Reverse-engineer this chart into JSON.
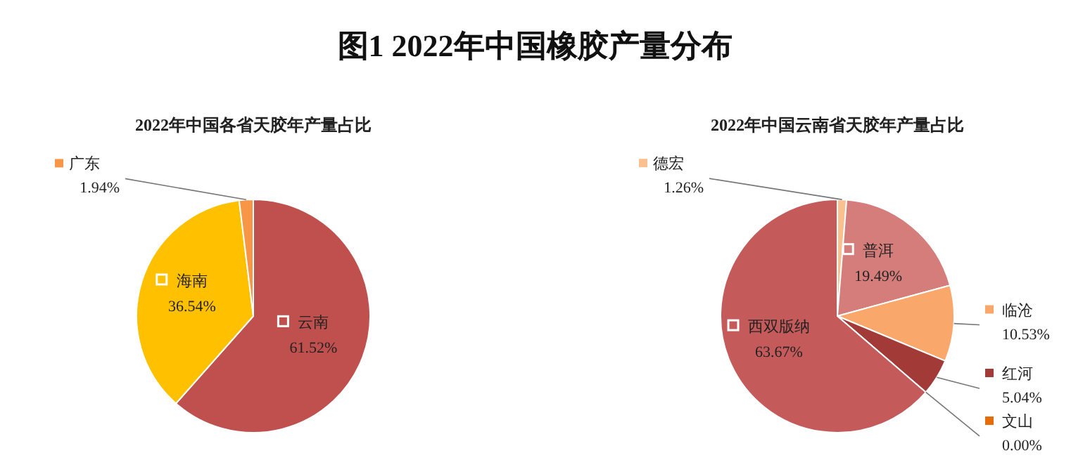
{
  "chart_data": [
    {
      "type": "pie",
      "title": "图1 2022年中国橡胶产量分布",
      "subtitle": "2022年中国各省天胶年产量占比",
      "categories": [
        "云南",
        "海南",
        "广东"
      ],
      "values": [
        61.52,
        36.54,
        1.94
      ],
      "colors": [
        "#c0504d",
        "#ffc000",
        "#f79646"
      ],
      "value_labels": [
        "61.52%",
        "36.54%",
        "1.94%"
      ],
      "legend": "top left"
    },
    {
      "type": "pie",
      "subtitle": "2022年中国云南省天胶年产量占比",
      "categories": [
        "德宏",
        "普洱",
        "临沧",
        "红河",
        "文山",
        "西双版纳"
      ],
      "values": [
        1.26,
        19.49,
        10.53,
        5.04,
        0.0,
        63.67
      ],
      "colors": [
        "#fac090",
        "#d47d7a",
        "#f9a76a",
        "#a23b38",
        "#e46c0a",
        "#c55a5a"
      ],
      "value_labels": [
        "1.26%",
        "19.49%",
        "10.53%",
        "5.04%",
        "0.00%",
        "63.67%"
      ],
      "legend": "right"
    }
  ]
}
